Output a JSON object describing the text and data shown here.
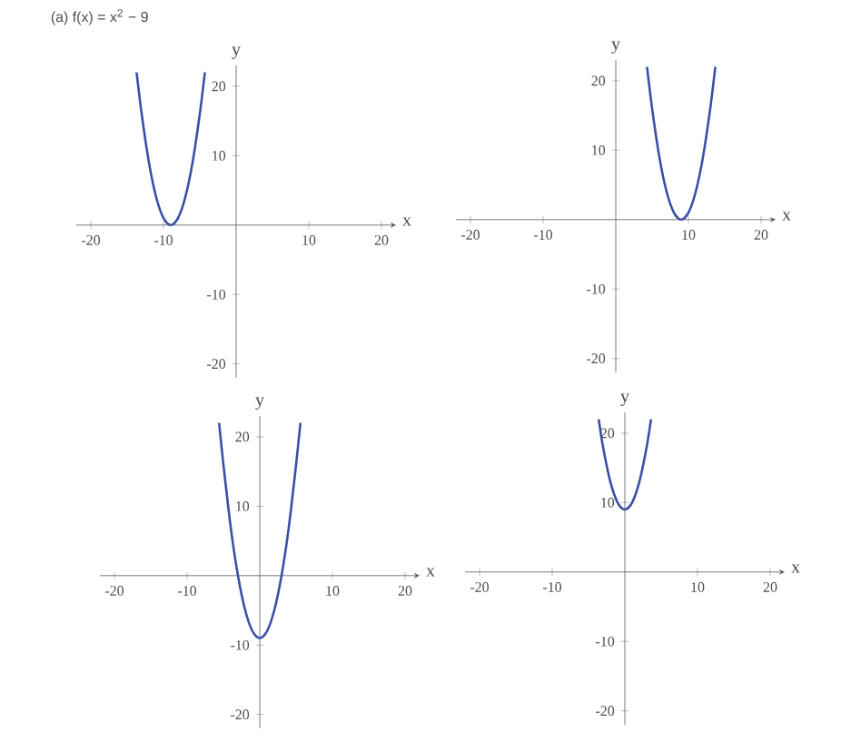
{
  "chart_data": [
    {
      "type": "line",
      "title": "(a)  f(x) = x$^{2}$ − 9",
      "xlabel": "x",
      "ylabel": "y",
      "xlim": [
        -22,
        22
      ],
      "ylim": [
        -22,
        23
      ],
      "xticks": [
        -20,
        -10,
        10,
        20
      ],
      "yticks": [
        -20,
        -10,
        10,
        20
      ],
      "series": [
        {
          "color": "#3b4fa8",
          "x": [
            -13.7,
            -13,
            -12,
            -11,
            -10,
            -9,
            -8,
            -7,
            -6,
            -5,
            -4.3
          ],
          "values": [
            22,
            16,
            9,
            4,
            1,
            0,
            1,
            4,
            9,
            16,
            22
          ]
        }
      ]
    },
    {
      "type": "line",
      "xlabel": "x",
      "ylabel": "y",
      "xlim": [
        -22,
        22
      ],
      "ylim": [
        -22,
        23
      ],
      "xticks": [
        -20,
        -10,
        10,
        20
      ],
      "yticks": [
        -20,
        -10,
        10,
        20
      ],
      "series": [
        {
          "color": "#3b4fa8",
          "x": [
            4.3,
            5,
            6,
            7,
            8,
            9,
            10,
            11,
            12,
            13,
            13.7
          ],
          "values": [
            22,
            16,
            9,
            4,
            1,
            0,
            1,
            4,
            9,
            16,
            22
          ]
        }
      ]
    },
    {
      "type": "line",
      "xlabel": "x",
      "ylabel": "y",
      "xlim": [
        -22,
        22
      ],
      "ylim": [
        -22,
        23
      ],
      "xticks": [
        -20,
        -10,
        10,
        20
      ],
      "yticks": [
        -20,
        -10,
        10,
        20
      ],
      "series": [
        {
          "color": "#3b4fa8",
          "x": [
            -5.6,
            -5,
            -4,
            -3,
            -2,
            -1,
            0,
            1,
            2,
            3,
            4,
            5,
            5.6
          ],
          "values": [
            22,
            16,
            7,
            0,
            -5,
            -8,
            -9,
            -8,
            -5,
            0,
            7,
            16,
            22
          ]
        }
      ]
    },
    {
      "type": "line",
      "xlabel": "x",
      "ylabel": "y",
      "xlim": [
        -22,
        22
      ],
      "ylim": [
        -22,
        23
      ],
      "xticks": [
        -20,
        -10,
        10,
        20
      ],
      "yticks": [
        -20,
        -10,
        10,
        20
      ],
      "series": [
        {
          "color": "#3b4fa8",
          "x": [
            -3.6,
            -3,
            -2,
            -1,
            0,
            1,
            2,
            3,
            3.6
          ],
          "values": [
            22,
            18,
            13,
            10,
            9,
            10,
            13,
            18,
            22
          ]
        }
      ]
    }
  ]
}
